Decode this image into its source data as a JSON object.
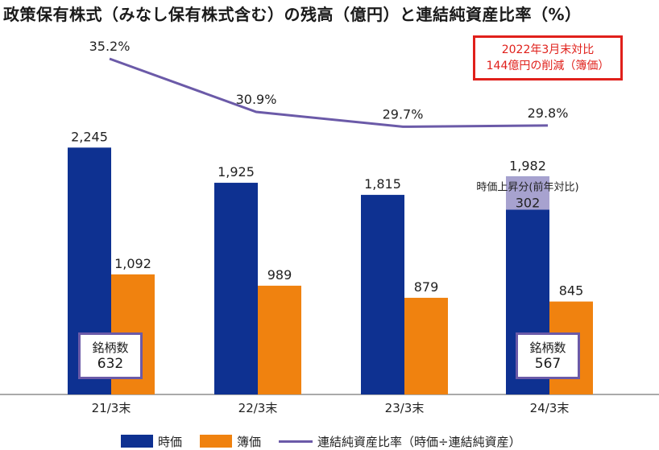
{
  "title": "政策保有株式（みなし保有株式含む）の残高（億円）と連結純資産比率（%）",
  "callout": {
    "line1": "2022年3月末対比",
    "line2": "144億円の削減（簿価）"
  },
  "brand_boxes": [
    {
      "label": "銘柄数",
      "value": "632"
    },
    {
      "label": "銘柄数",
      "value": "567"
    }
  ],
  "annotation": {
    "label": "時価上昇分(前年対比)",
    "value": "302"
  },
  "legend": {
    "market": "時価",
    "book": "簿価",
    "ratio": "連結純資産比率（時価÷連結純資産）"
  },
  "colors": {
    "market": "#0e3191",
    "book": "#f0820f",
    "ratio": "#6b5aa8",
    "increase": "#a7a2cf"
  },
  "chart_data": {
    "type": "bar",
    "categories": [
      "21/3末",
      "22/3末",
      "23/3末",
      "24/3末"
    ],
    "series": [
      {
        "name": "時価",
        "values": [
          2245,
          1925,
          1815,
          1982
        ],
        "labels": [
          "2,245",
          "1,925",
          "1,815",
          "1,982"
        ]
      },
      {
        "name": "簿価",
        "values": [
          1092,
          989,
          879,
          845
        ],
        "labels": [
          "1,092",
          "989",
          "879",
          "845"
        ]
      }
    ],
    "line_series": {
      "name": "連結純資産比率（時価÷連結純資産）",
      "values": [
        35.2,
        30.9,
        29.7,
        29.8
      ],
      "labels": [
        "35.2%",
        "30.9%",
        "29.7%",
        "29.8%"
      ]
    },
    "increase_segment": {
      "category": "24/3末",
      "value": 302
    },
    "title": "政策保有株式（みなし保有株式含む）の残高（億円）と連結純資産比率（%）",
    "ylim": [
      0,
      2500
    ],
    "grid": false,
    "legend_position": "bottom"
  }
}
